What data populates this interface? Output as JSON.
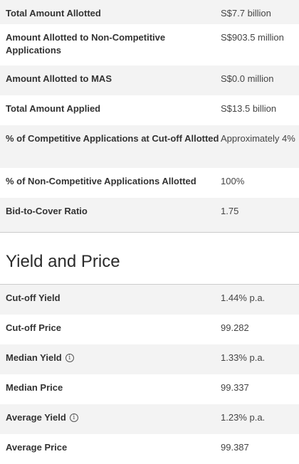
{
  "allotment_table": [
    {
      "label": "Total Amount Allotted",
      "value": "S$7.7 billion"
    },
    {
      "label": "Amount Allotted to Non-Competitive Applications",
      "value": "S$903.5 million"
    },
    {
      "label": "Amount Allotted to MAS",
      "value": "S$0.0 million"
    },
    {
      "label": "Total Amount Applied",
      "value": "S$13.5 billion"
    },
    {
      "label": "% of Competitive Applications at Cut-off Allotted",
      "value": "Approximately 4%"
    },
    {
      "label": "% of Non-Competitive Applications Allotted",
      "value": "100%"
    },
    {
      "label": "Bid-to-Cover Ratio",
      "value": "1.75"
    }
  ],
  "yield_section": {
    "title": "Yield and Price",
    "rows": [
      {
        "label": "Cut-off Yield",
        "value": "1.44% p.a."
      },
      {
        "label": "Cut-off Price",
        "value": "99.282"
      },
      {
        "label": "Median Yield",
        "value": "1.33% p.a.",
        "icon": "info-icon"
      },
      {
        "label": "Median Price",
        "value": "99.337"
      },
      {
        "label": "Average Yield",
        "value": "1.23% p.a.",
        "icon": "info-icon"
      },
      {
        "label": "Average Price",
        "value": "99.387"
      }
    ]
  }
}
